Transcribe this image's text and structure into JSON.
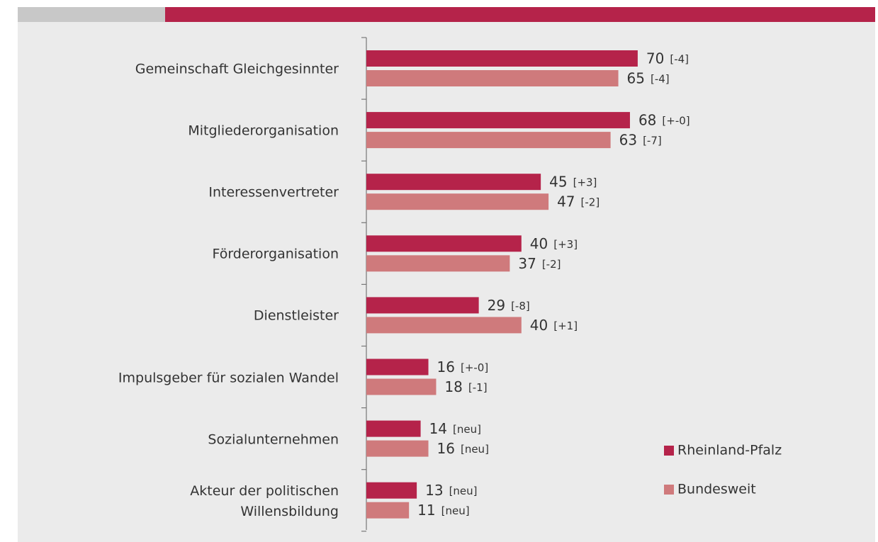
{
  "chart_data": {
    "type": "bar",
    "orientation": "horizontal",
    "categories": [
      "Gemeinschaft Gleichgesinnter",
      "Mitgliederorganisation",
      "Interessenvertreter",
      "Förderorganisation",
      "Dienstleister",
      "Impulsgeber für sozialen Wandel",
      "Sozialunternehmen",
      "Akteur der politischen\nWillensbildung"
    ],
    "series": [
      {
        "name": "Rheinland-Pfalz",
        "color": "#b5234a",
        "values": [
          70,
          68,
          45,
          40,
          29,
          16,
          14,
          13
        ],
        "changes": [
          "[-4]",
          "[+-0]",
          "[+3]",
          "[+3]",
          "[-8]",
          "[+-0]",
          "[neu]",
          "[neu]"
        ]
      },
      {
        "name": "Bundesweit",
        "color": "#cf7a7c",
        "values": [
          65,
          63,
          47,
          37,
          40,
          18,
          16,
          11
        ],
        "changes": [
          "[-4]",
          "[-7]",
          "[-2]",
          "[-2]",
          "[+1]",
          "[-1]",
          "[neu]",
          "[neu]"
        ]
      }
    ]
  }
}
